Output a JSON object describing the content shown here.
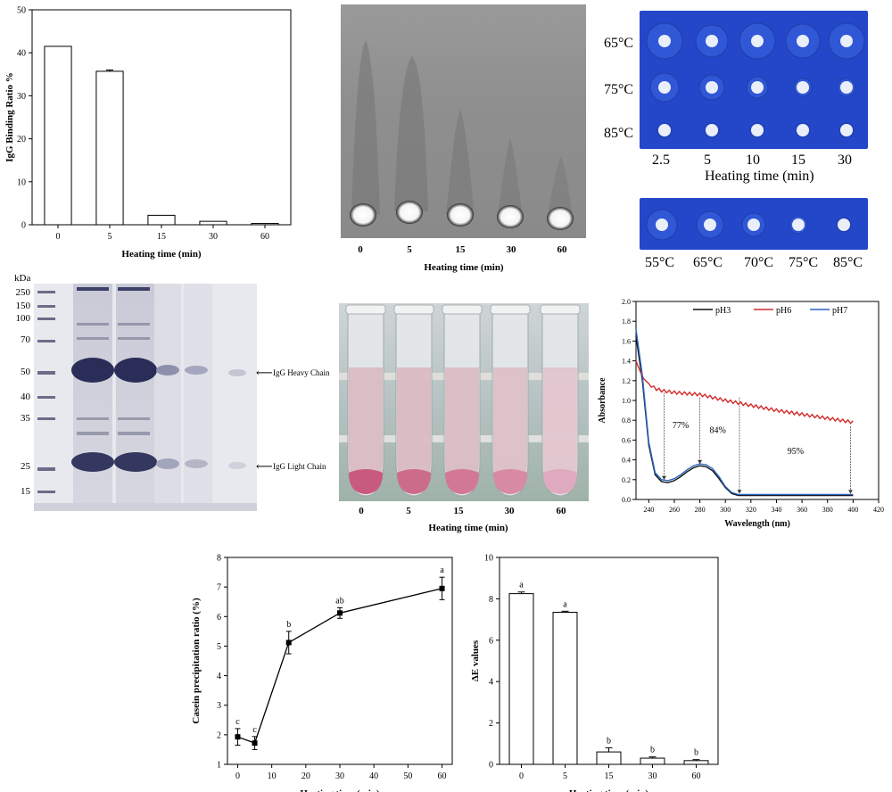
{
  "chart_data": [
    {
      "type": "bar",
      "ylabel": "IgG Binding Ratio %",
      "xlabel": "Heating time (min)",
      "categories": [
        "0",
        "5",
        "15",
        "30",
        "60"
      ],
      "values": [
        41.5,
        35.7,
        2.2,
        0.8,
        0.3
      ],
      "errors": [
        0.0,
        0.3,
        0.0,
        0.0,
        0.0
      ],
      "ylim": [
        0,
        50
      ],
      "yticks": [
        "0",
        "10",
        "20",
        "30",
        "40",
        "50"
      ]
    },
    {
      "type": "line",
      "ylabel": "Absorbance",
      "xlabel": "Wavelength (nm)",
      "xlim": [
        230,
        420
      ],
      "ylim": [
        0.0,
        2.0
      ],
      "xticks": [
        "240",
        "260",
        "280",
        "300",
        "320",
        "340",
        "360",
        "380",
        "400",
        "420"
      ],
      "yticks": [
        "0.0",
        "0.2",
        "0.4",
        "0.6",
        "0.8",
        "1.0",
        "1.2",
        "1.4",
        "1.6",
        "1.8",
        "2.0"
      ],
      "series": [
        {
          "name": "pH3",
          "color": "#111111",
          "x": [
            230,
            235,
            240,
            245,
            250,
            255,
            260,
            265,
            270,
            275,
            280,
            285,
            290,
            295,
            300,
            305,
            310,
            320,
            340,
            360,
            380,
            400
          ],
          "y": [
            1.65,
            1.2,
            0.55,
            0.25,
            0.18,
            0.17,
            0.19,
            0.23,
            0.28,
            0.32,
            0.34,
            0.33,
            0.29,
            0.21,
            0.12,
            0.06,
            0.04,
            0.04,
            0.04,
            0.04,
            0.04,
            0.04
          ]
        },
        {
          "name": "pH6",
          "color": "#d42a2a",
          "x": [
            230,
            233,
            236,
            240,
            245,
            250,
            260,
            270,
            280,
            290,
            300,
            320,
            340,
            360,
            380,
            400
          ],
          "y": [
            1.4,
            1.3,
            1.22,
            1.17,
            1.12,
            1.1,
            1.08,
            1.07,
            1.06,
            1.03,
            1.0,
            0.95,
            0.9,
            0.86,
            0.82,
            0.78
          ]
        },
        {
          "name": "pH7",
          "color": "#2a64c0",
          "x": [
            230,
            235,
            240,
            245,
            250,
            255,
            260,
            265,
            270,
            275,
            280,
            285,
            290,
            295,
            300,
            305,
            310,
            320,
            340,
            360,
            380,
            400
          ],
          "y": [
            1.72,
            1.25,
            0.58,
            0.27,
            0.2,
            0.19,
            0.21,
            0.25,
            0.3,
            0.34,
            0.36,
            0.35,
            0.31,
            0.23,
            0.13,
            0.07,
            0.05,
            0.05,
            0.05,
            0.05,
            0.05,
            0.05
          ]
        }
      ],
      "annotations": [
        "77%",
        "84%",
        "95%"
      ],
      "arrows_x": [
        252,
        280,
        311,
        398
      ]
    },
    {
      "type": "line",
      "ylabel": "Casein precipitation ratio (%)",
      "xlabel": "Heating time (min)",
      "xlim": [
        -3,
        63
      ],
      "ylim": [
        1,
        8
      ],
      "xticks": [
        "0",
        "10",
        "20",
        "30",
        "40",
        "50",
        "60"
      ],
      "yticks": [
        "1",
        "2",
        "3",
        "4",
        "5",
        "6",
        "7",
        "8"
      ],
      "x": [
        0,
        5,
        15,
        30,
        60
      ],
      "y": [
        1.93,
        1.72,
        5.12,
        6.12,
        6.95
      ],
      "errors": [
        0.28,
        0.22,
        0.38,
        0.18,
        0.38
      ],
      "letters": [
        "c",
        "c",
        "b",
        "ab",
        "a"
      ]
    },
    {
      "type": "bar",
      "ylabel": "ΔE values",
      "xlabel": "Heating time (min)",
      "categories": [
        "0",
        "5",
        "15",
        "30",
        "60"
      ],
      "values": [
        8.25,
        7.35,
        0.6,
        0.3,
        0.18
      ],
      "errors": [
        0.08,
        0.05,
        0.2,
        0.06,
        0.05
      ],
      "letters": [
        "a",
        "a",
        "b",
        "b",
        "b"
      ],
      "ylim": [
        0,
        10
      ],
      "yticks": [
        "0",
        "2",
        "4",
        "6",
        "8",
        "10"
      ]
    }
  ],
  "photos": {
    "gel_diffusion": {
      "xlabel": "Heating time (min)",
      "lanes": [
        "0",
        "5",
        "15",
        "30",
        "60"
      ]
    },
    "plates": {
      "rows": [
        "65°C",
        "75°C",
        "85°C"
      ],
      "cols": [
        "2.5",
        "5",
        "10",
        "15",
        "30"
      ],
      "xlabel": "Heating time (min)",
      "temps": [
        "55°C",
        "65°C",
        "70°C",
        "75°C",
        "85°C"
      ]
    },
    "sds_page": {
      "unit": "kDa",
      "markers": [
        "250",
        "150",
        "100",
        "70",
        "50",
        "40",
        "35",
        "25",
        "15"
      ],
      "heavy": "IgG Heavy Chain",
      "light": "IgG Light Chain"
    },
    "tubes": {
      "xlabel": "Heating time (min)",
      "lanes": [
        "0",
        "5",
        "15",
        "30",
        "60"
      ]
    }
  }
}
